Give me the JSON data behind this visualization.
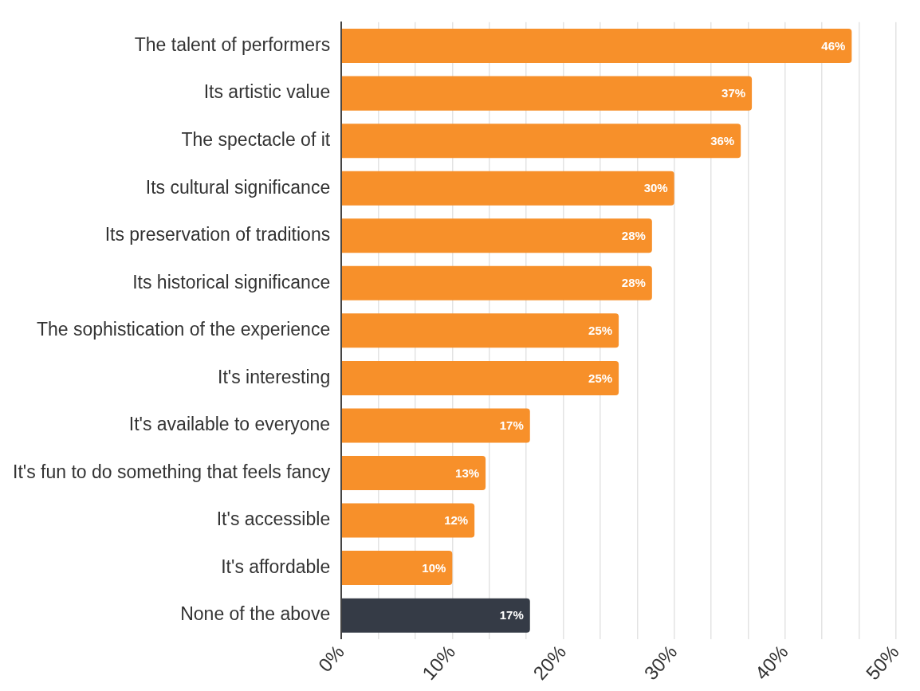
{
  "chart_data": {
    "type": "bar",
    "orientation": "horizontal",
    "categories": [
      "The talent of performers",
      "Its artistic value",
      "The spectacle of it",
      "Its cultural significance",
      "Its preservation of traditions",
      "Its historical significance",
      "The sophistication of the experience",
      "It's interesting",
      "It's available to everyone",
      "It's fun to do something that feels fancy",
      "It's accessible",
      "It's affordable",
      "None of the above"
    ],
    "values": [
      46,
      37,
      36,
      30,
      28,
      28,
      25,
      25,
      17,
      13,
      12,
      10,
      17
    ],
    "colors": [
      "#f7902a",
      "#f7902a",
      "#f7902a",
      "#f7902a",
      "#f7902a",
      "#f7902a",
      "#f7902a",
      "#f7902a",
      "#f7902a",
      "#f7902a",
      "#f7902a",
      "#f7902a",
      "#353b46"
    ],
    "value_labels": [
      "46%",
      "37%",
      "36%",
      "30%",
      "28%",
      "28%",
      "25%",
      "25%",
      "17%",
      "13%",
      "12%",
      "10%",
      "17%"
    ],
    "xlim": [
      0,
      50
    ],
    "xticks": [
      {
        "value": 0,
        "label": "0%"
      },
      {
        "value": 3.33,
        "label": null
      },
      {
        "value": 6.67,
        "label": null
      },
      {
        "value": 10,
        "label": "10%"
      },
      {
        "value": 13.33,
        "label": null
      },
      {
        "value": 16.67,
        "label": null
      },
      {
        "value": 20,
        "label": "20%"
      },
      {
        "value": 23.33,
        "label": null
      },
      {
        "value": 26.67,
        "label": null
      },
      {
        "value": 30,
        "label": "30%"
      },
      {
        "value": 33.33,
        "label": null
      },
      {
        "value": 36.67,
        "label": null
      },
      {
        "value": 40,
        "label": "40%"
      },
      {
        "value": 43.33,
        "label": null
      },
      {
        "value": 46.67,
        "label": null
      },
      {
        "value": 50,
        "label": "50%"
      }
    ],
    "grid": "x",
    "legend": false
  }
}
